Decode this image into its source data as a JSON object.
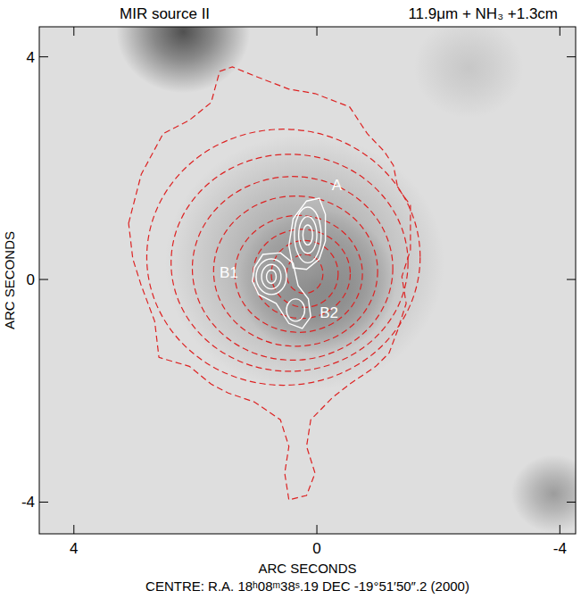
{
  "chart_data": {
    "type": "contour",
    "title": "MIR source II",
    "subtitle": "11.9μm + NH₃ +1.3cm",
    "x_label": "ARC SECONDS",
    "y_label": "ARC SECONDS",
    "caption": "CENTRE: R.A. 18ʰ08ᵐ38ˢ.19  DEC -19°51′50″.2  (2000)",
    "xlim": [
      4.57,
      -4.26
    ],
    "ylim": [
      -4.57,
      4.54
    ],
    "xticks": [
      4,
      0,
      -4
    ],
    "yticks": [
      -4,
      0,
      4
    ],
    "image_sources": [
      {
        "x": 0.0,
        "y": -0.05,
        "radius": 1.3,
        "level": 0.85
      },
      {
        "x": 0.2,
        "y": 0.3,
        "radius": 2.3,
        "level": 0.35
      },
      {
        "x": 2.2,
        "y": 4.45,
        "radius": 1.1,
        "level": 0.75
      },
      {
        "x": -3.9,
        "y": -3.85,
        "radius": 0.7,
        "level": 0.35
      },
      {
        "x": -2.5,
        "y": 3.8,
        "radius": 0.9,
        "level": 0.12
      }
    ],
    "series": [
      {
        "color": "#dd2222",
        "line_style": "dashed",
        "contours": [
          {
            "x": [
              3.1,
              2.89,
              2.53,
              2.1,
              1.74,
              1.6,
              1.39,
              1.03,
              0.46,
              0.03,
              -0.54,
              -0.83,
              -1.11,
              -1.26,
              -1.33,
              -1.54,
              -1.54,
              -1.4,
              -1.47,
              -1.33,
              -1.19,
              -0.97,
              -0.54,
              -0.26,
              0.1,
              0.17,
              0.03,
              0.17,
              0.46,
              0.53,
              0.46,
              0.6,
              1.03,
              1.46,
              1.74,
              2.1,
              2.6,
              2.67,
              2.89,
              3.03
            ],
            "y": [
              1.01,
              1.89,
              2.62,
              2.86,
              3.18,
              3.74,
              3.82,
              3.66,
              3.42,
              3.34,
              3.1,
              2.62,
              2.3,
              2.05,
              1.65,
              1.33,
              0.53,
              0.05,
              -0.43,
              -0.91,
              -1.32,
              -1.56,
              -1.88,
              -2.12,
              -2.52,
              -3.0,
              -3.48,
              -3.88,
              -3.96,
              -3.48,
              -3.0,
              -2.52,
              -2.2,
              -2.04,
              -1.88,
              -1.56,
              -1.4,
              -0.75,
              -0.11,
              0.37
            ]
          },
          {
            "cx": 0.55,
            "cy": 0.4,
            "rx": 2.25,
            "ry": 2.3
          },
          {
            "cx": 0.45,
            "cy": 0.3,
            "rx": 1.95,
            "ry": 1.95
          },
          {
            "cx": 0.4,
            "cy": 0.2,
            "rx": 1.65,
            "ry": 1.65
          },
          {
            "cx": 0.35,
            "cy": 0.15,
            "rx": 1.35,
            "ry": 1.35
          },
          {
            "cx": 0.3,
            "cy": 0.1,
            "rx": 1.05,
            "ry": 1.05
          },
          {
            "cx": 0.25,
            "cy": 0.1,
            "rx": 0.8,
            "ry": 0.8
          },
          {
            "cx": 0.2,
            "cy": 0.1,
            "rx": 0.55,
            "ry": 0.6
          },
          {
            "cx": 0.2,
            "cy": 0.1,
            "rx": 0.3,
            "ry": 0.35
          }
        ]
      },
      {
        "color": "#ffffff",
        "line_style": "solid",
        "contours": [
          {
            "x": [
              0.39,
              0.46,
              0.39,
              0.17,
              -0.04,
              -0.14,
              -0.14,
              -0.04,
              0.17
            ],
            "y": [
              0.21,
              0.61,
              1.09,
              1.41,
              1.46,
              1.17,
              0.69,
              0.37,
              0.18
            ]
          },
          {
            "cx": 0.15,
            "cy": 0.8,
            "rx": 0.22,
            "ry": 0.5
          },
          {
            "cx": 0.15,
            "cy": 0.8,
            "rx": 0.15,
            "ry": 0.33
          },
          {
            "cx": 0.15,
            "cy": 0.8,
            "rx": 0.08,
            "ry": 0.18
          },
          {
            "x": [
              1.03,
              0.89,
              0.6,
              0.39,
              0.31,
              0.14,
              0.1,
              0.24,
              0.46,
              0.67,
              0.96,
              1.06
            ],
            "y": [
              0.21,
              0.45,
              0.48,
              0.29,
              -0.11,
              -0.35,
              -0.67,
              -0.88,
              -0.79,
              -0.43,
              -0.27,
              -0.03
            ]
          },
          {
            "cx": 0.75,
            "cy": 0.05,
            "rx": 0.25,
            "ry": 0.32
          },
          {
            "cx": 0.75,
            "cy": 0.05,
            "rx": 0.16,
            "ry": 0.22
          },
          {
            "cx": 0.75,
            "cy": 0.05,
            "rx": 0.08,
            "ry": 0.12
          },
          {
            "cx": 0.35,
            "cy": -0.55,
            "rx": 0.15,
            "ry": 0.2
          }
        ]
      }
    ],
    "annotations": [
      {
        "text": "A",
        "x": -0.33,
        "y": 1.68
      },
      {
        "text": "B1",
        "x": 1.45,
        "y": 0.1
      },
      {
        "text": "B2",
        "x": -0.2,
        "y": -0.62
      }
    ]
  }
}
